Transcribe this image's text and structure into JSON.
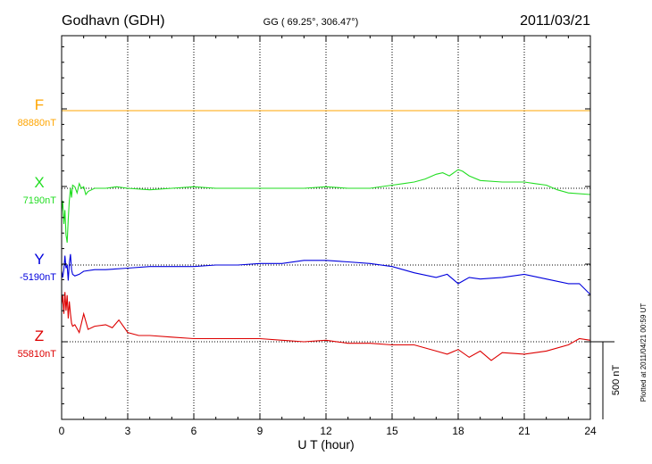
{
  "header": {
    "station": "Godhavn (GDH)",
    "coords": "GG ( 69.25°, 306.47°)",
    "date": "2011/03/21"
  },
  "plotted_note": "Plotted at 2011/04/21 00:59 UT",
  "scale_label": "500 nT",
  "colors": {
    "F": "#ffa500",
    "X": "#22dd22",
    "Y": "#0000dd",
    "Z": "#dd0000"
  },
  "chart_data": {
    "type": "line",
    "xlabel": "U T (hour)",
    "xlim": [
      0,
      24
    ],
    "xticks": [
      0,
      3,
      6,
      9,
      12,
      15,
      18,
      21,
      24
    ],
    "x_tick_labels": [
      "0",
      "3",
      "6",
      "9",
      "12",
      "15",
      "18",
      "21",
      "24"
    ],
    "x_minor_step": 1,
    "grid": "dotted vertical at major ticks",
    "scale_bar_nT": 500,
    "series": [
      {
        "name": "F",
        "baseline_label": "88880nT",
        "baseline_nT": 88880,
        "x": [
          0,
          24
        ],
        "offset_nT": [
          0,
          0
        ]
      },
      {
        "name": "X",
        "baseline_label": "7190nT",
        "baseline_nT": 7190,
        "x": [
          0,
          0.05,
          0.1,
          0.15,
          0.2,
          0.25,
          0.3,
          0.35,
          0.4,
          0.45,
          0.5,
          0.6,
          0.7,
          0.8,
          0.9,
          1.0,
          1.1,
          1.2,
          1.5,
          2,
          2.5,
          3,
          4,
          5,
          6,
          7,
          8,
          9,
          10,
          11,
          12,
          13,
          14,
          15,
          15.5,
          16,
          16.5,
          17,
          17.3,
          17.6,
          18,
          18.2,
          18.5,
          19,
          20,
          21,
          21.5,
          22,
          22.5,
          23,
          24
        ],
        "offset_nT": [
          -150,
          -80,
          -230,
          -140,
          -300,
          -350,
          -200,
          -80,
          0,
          -60,
          20,
          10,
          -30,
          30,
          0,
          10,
          -40,
          -20,
          0,
          0,
          10,
          0,
          -10,
          0,
          10,
          0,
          0,
          0,
          0,
          0,
          10,
          0,
          0,
          20,
          30,
          40,
          60,
          90,
          100,
          80,
          120,
          110,
          80,
          50,
          40,
          40,
          30,
          20,
          -10,
          -30,
          -40
        ]
      },
      {
        "name": "Y",
        "baseline_label": "-5190nT",
        "baseline_nT": -5190,
        "x": [
          0,
          0.05,
          0.1,
          0.15,
          0.2,
          0.25,
          0.3,
          0.35,
          0.4,
          0.45,
          0.5,
          0.6,
          0.8,
          1.0,
          1.5,
          2,
          3,
          4,
          5,
          6,
          7,
          8,
          9,
          10,
          11,
          12,
          13,
          14,
          15,
          16,
          17,
          17.5,
          18,
          18.5,
          19,
          20,
          21,
          22,
          23,
          23.5,
          24
        ],
        "offset_nT": [
          -40,
          -80,
          -30,
          60,
          -20,
          0,
          -100,
          10,
          70,
          -30,
          -60,
          -70,
          -60,
          -40,
          -30,
          -30,
          -20,
          -10,
          -10,
          -10,
          0,
          0,
          10,
          10,
          30,
          30,
          20,
          10,
          -10,
          -50,
          -80,
          -60,
          -120,
          -80,
          -90,
          -80,
          -60,
          -90,
          -120,
          -120,
          -190
        ]
      },
      {
        "name": "Z",
        "baseline_label": "55810nT",
        "baseline_nT": 55810,
        "x": [
          0,
          0.05,
          0.1,
          0.15,
          0.2,
          0.25,
          0.3,
          0.35,
          0.4,
          0.45,
          0.5,
          0.6,
          0.8,
          1.0,
          1.2,
          1.5,
          2,
          2.3,
          2.6,
          3,
          3.5,
          4,
          5,
          6,
          7,
          8,
          9,
          10,
          11,
          12,
          13,
          14,
          15,
          16,
          17,
          17.5,
          18,
          18.5,
          19,
          19.5,
          20,
          21,
          22,
          23,
          23.5,
          24
        ],
        "offset_nT": [
          240,
          300,
          180,
          320,
          200,
          300,
          150,
          260,
          180,
          120,
          100,
          110,
          60,
          180,
          80,
          100,
          110,
          90,
          140,
          60,
          40,
          40,
          30,
          20,
          20,
          20,
          20,
          10,
          0,
          10,
          -10,
          -10,
          -20,
          -20,
          -60,
          -80,
          -50,
          -100,
          -60,
          -120,
          -70,
          -80,
          -60,
          -20,
          20,
          10
        ]
      }
    ]
  }
}
